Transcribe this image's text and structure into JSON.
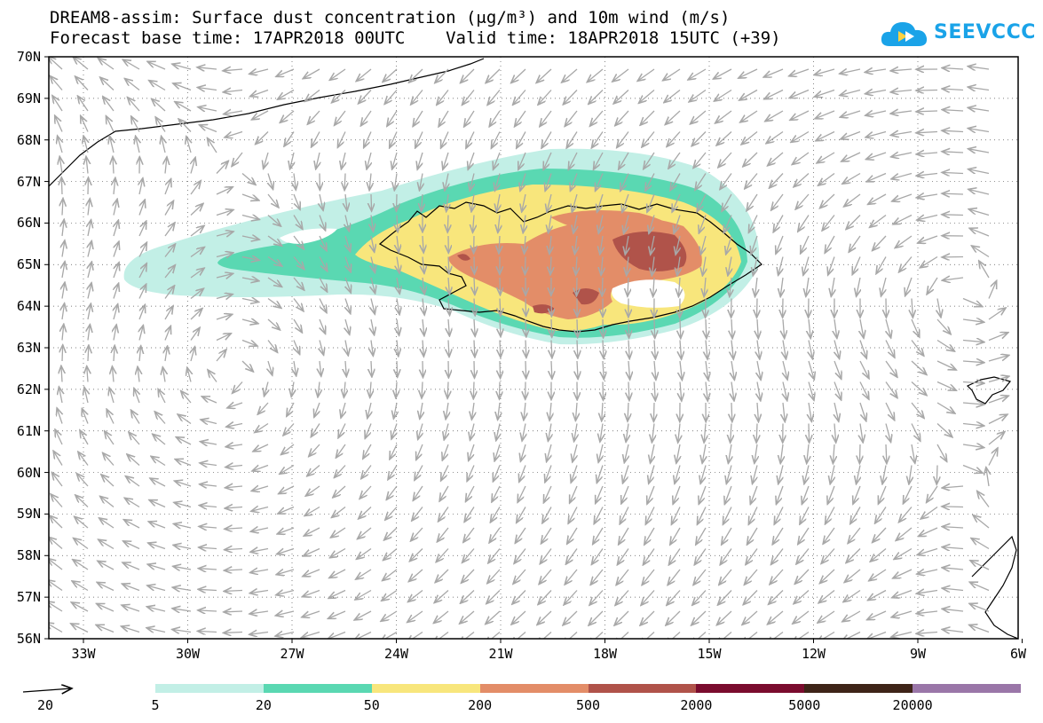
{
  "title": {
    "line1": "DREAM8-assim: Surface dust concentration (μg/m³) and 10m wind (m/s)",
    "line2": "Forecast base time: 17APR2018 00UTC    Valid time: 18APR2018 15UTC (+39)"
  },
  "logo": {
    "text": "SEEVCCC",
    "icon": "cloud-icon",
    "color": "#1aa3e8"
  },
  "axes": {
    "lat_labels": [
      "70N",
      "69N",
      "68N",
      "67N",
      "66N",
      "65N",
      "64N",
      "63N",
      "62N",
      "61N",
      "60N",
      "59N",
      "58N",
      "57N",
      "56N"
    ],
    "lon_labels": [
      "33W",
      "30W",
      "27W",
      "24W",
      "21W",
      "18W",
      "15W",
      "12W",
      "9W",
      "6W"
    ]
  },
  "colorbar": {
    "colors": [
      "#c2efe6",
      "#5ad8b2",
      "#f8e67c",
      "#e38d68",
      "#b0534a",
      "#7a0c2e",
      "#3e2418",
      "#9a76a8"
    ],
    "labels": [
      "5",
      "20",
      "50",
      "200",
      "500",
      "2000",
      "5000",
      "20000"
    ]
  },
  "wind_reference": {
    "label": "20"
  }
}
